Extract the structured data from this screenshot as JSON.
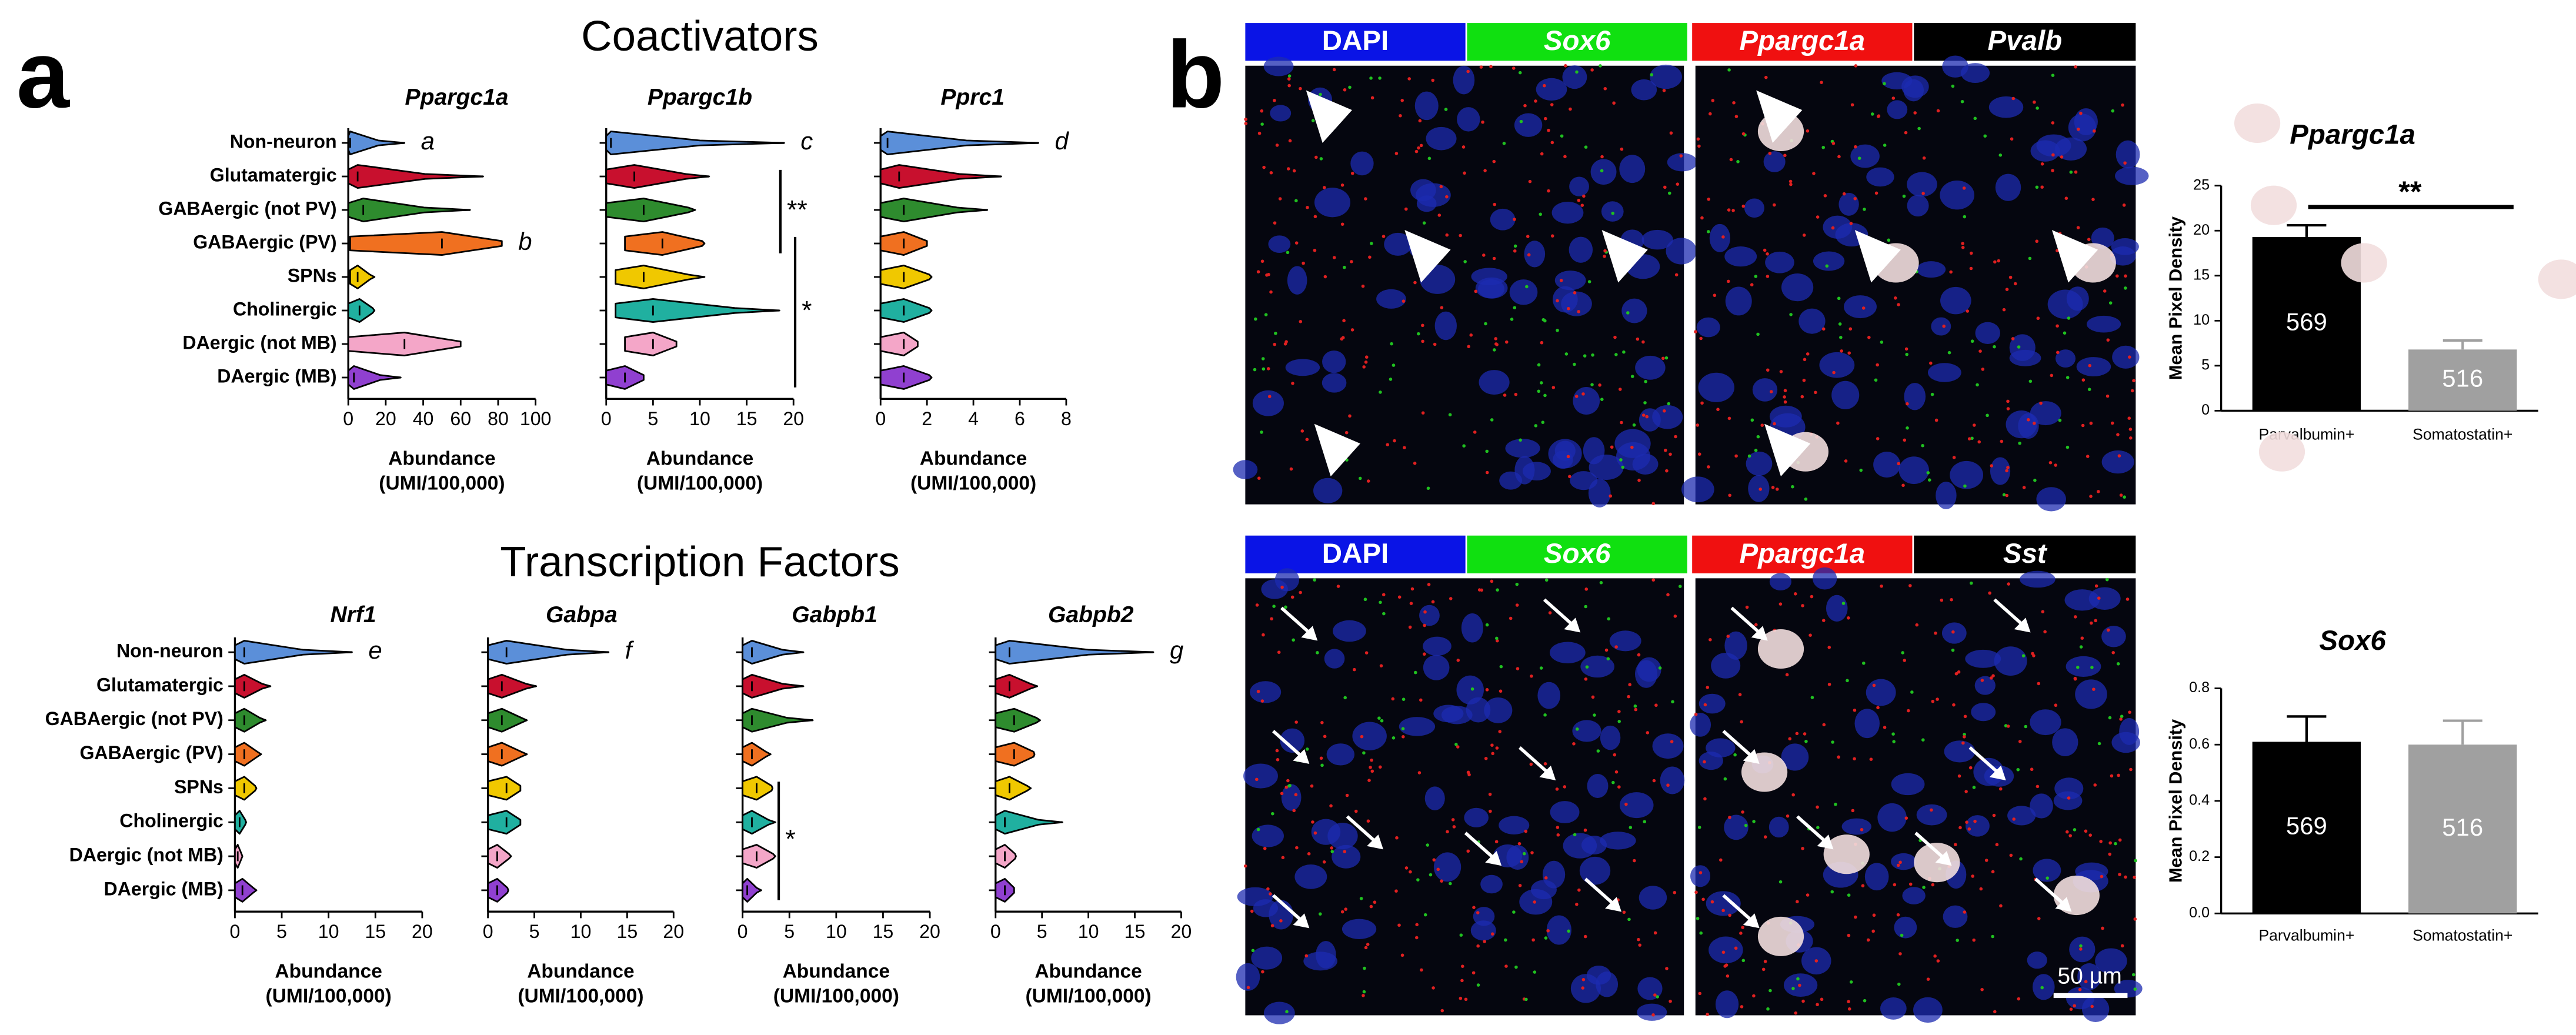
{
  "panel_labels": [
    "a",
    "b"
  ],
  "sections": [
    "Coactivators",
    "Transcription Factors"
  ],
  "chart_data": [
    {
      "type": "violin",
      "title": "Ppargc1a",
      "categories": [
        "Non-neuron",
        "Glutamatergic",
        "GABAergic (not PV)",
        "GABAergic (PV)",
        "SPNs",
        "Cholinergic",
        "DAergic (not MB)",
        "DAergic (MB)"
      ],
      "colors": [
        "#5b8fd9",
        "#c8102e",
        "#2e8b2e",
        "#f07020",
        "#f0c800",
        "#20b0a0",
        "#f4a6c8",
        "#9040d0"
      ],
      "min": [
        0,
        0,
        0,
        1,
        1,
        0,
        0,
        0
      ],
      "values": [
        1,
        5,
        8,
        50,
        5,
        6,
        30,
        3
      ],
      "max": [
        30,
        72,
        65,
        82,
        14,
        14,
        60,
        28
      ],
      "xlim": [
        0,
        100
      ],
      "xticks": [
        0,
        20,
        40,
        60,
        80,
        100
      ],
      "xlabel": [
        "Abundance",
        "(UMI/100,000)"
      ],
      "annotations": [
        {
          "text": "a",
          "row": 0
        },
        {
          "text": "b",
          "row": 3
        }
      ]
    },
    {
      "type": "violin",
      "title": "Ppargc1b",
      "colors": [
        "#5b8fd9",
        "#c8102e",
        "#2e8b2e",
        "#f07020",
        "#f0c800",
        "#20b0a0",
        "#f4a6c8",
        "#9040d0"
      ],
      "min": [
        0,
        0,
        0,
        2,
        1,
        1,
        2,
        0
      ],
      "values": [
        0.5,
        3,
        4,
        6,
        4,
        5,
        5,
        2
      ],
      "max": [
        19,
        11,
        9.5,
        10.5,
        10.5,
        18.5,
        7.5,
        4
      ],
      "xlim": [
        0,
        20
      ],
      "xticks": [
        0,
        5,
        10,
        15,
        20
      ],
      "xlabel": [
        "Abundance",
        "(UMI/100,000)"
      ],
      "annotations": [
        {
          "text": "c",
          "row": 0
        }
      ],
      "significance": [
        {
          "text": "**",
          "rows": [
            1,
            3
          ]
        },
        {
          "text": "*",
          "rows": [
            3,
            7
          ]
        }
      ]
    },
    {
      "type": "violin",
      "title": "Pprc1",
      "colors": [
        "#5b8fd9",
        "#c8102e",
        "#2e8b2e",
        "#f07020",
        "#f0c800",
        "#20b0a0",
        "#f4a6c8",
        "#9040d0"
      ],
      "min": [
        0,
        0,
        0,
        0,
        0,
        0,
        0,
        0
      ],
      "values": [
        0.3,
        0.8,
        1,
        1,
        1,
        1,
        1,
        1
      ],
      "max": [
        6.8,
        5.2,
        4.6,
        2,
        2.2,
        2.2,
        1.6,
        2.2
      ],
      "xlim": [
        0,
        8
      ],
      "xticks": [
        0,
        2,
        4,
        6,
        8
      ],
      "xlabel": [
        "Abundance",
        "(UMI/100,000)"
      ],
      "annotations": [
        {
          "text": "d",
          "row": 0
        }
      ]
    },
    {
      "type": "violin",
      "title": "Nrf1",
      "categories": [
        "Non-neuron",
        "Glutamatergic",
        "GABAergic (not PV)",
        "GABAergic (PV)",
        "SPNs",
        "Cholinergic",
        "DAergic (not MB)",
        "DAergic (MB)"
      ],
      "colors": [
        "#5b8fd9",
        "#c8102e",
        "#2e8b2e",
        "#f07020",
        "#f0c800",
        "#20b0a0",
        "#f4a6c8",
        "#9040d0"
      ],
      "min": [
        0,
        0,
        0,
        0,
        0,
        0,
        0,
        0
      ],
      "values": [
        1,
        1,
        1,
        1,
        1,
        0.5,
        0.3,
        0.8
      ],
      "max": [
        12.5,
        3.8,
        3.3,
        2.8,
        2.3,
        1.2,
        0.8,
        2.3
      ],
      "xlim": [
        0,
        20
      ],
      "xticks": [
        0,
        5,
        10,
        15,
        20
      ],
      "xlabel": [
        "Abundance",
        "(UMI/100,000)"
      ],
      "annotations": [
        {
          "text": "e",
          "row": 0
        }
      ]
    },
    {
      "type": "violin",
      "title": "Gabpa",
      "colors": [
        "#5b8fd9",
        "#c8102e",
        "#2e8b2e",
        "#f07020",
        "#f0c800",
        "#20b0a0",
        "#f4a6c8",
        "#9040d0"
      ],
      "min": [
        0,
        0,
        0,
        0,
        0,
        0,
        0,
        0
      ],
      "values": [
        2,
        1.5,
        1.5,
        1.5,
        2,
        2,
        1,
        1
      ],
      "max": [
        13,
        5.2,
        4.2,
        4.2,
        3.5,
        3.5,
        2.5,
        2.2
      ],
      "xlim": [
        0,
        20
      ],
      "xticks": [
        0,
        5,
        10,
        15,
        20
      ],
      "xlabel": [
        "Abundance",
        "(UMI/100,000)"
      ],
      "annotations": [
        {
          "text": "f",
          "row": 0
        }
      ]
    },
    {
      "type": "violin",
      "title": "Gabpb1",
      "colors": [
        "#5b8fd9",
        "#c8102e",
        "#2e8b2e",
        "#f07020",
        "#f0c800",
        "#20b0a0",
        "#f4a6c8",
        "#9040d0"
      ],
      "min": [
        0,
        0,
        0,
        0,
        0,
        0,
        0,
        0
      ],
      "values": [
        1,
        1,
        1,
        1,
        1.5,
        1,
        1.5,
        0.5
      ],
      "max": [
        6.5,
        6.5,
        7.5,
        3,
        3.2,
        3.5,
        3.5,
        2
      ],
      "xlim": [
        0,
        20
      ],
      "xticks": [
        0,
        5,
        10,
        15,
        20
      ],
      "xlabel": [
        "Abundance",
        "(UMI/100,000)"
      ],
      "significance": [
        {
          "text": "*",
          "rows": [
            4,
            7
          ]
        }
      ]
    },
    {
      "type": "violin",
      "title": "Gabpb2",
      "colors": [
        "#5b8fd9",
        "#c8102e",
        "#2e8b2e",
        "#f07020",
        "#f0c800",
        "#20b0a0",
        "#f4a6c8",
        "#9040d0"
      ],
      "min": [
        0,
        0,
        0,
        0,
        0,
        0,
        0,
        0
      ],
      "values": [
        1.5,
        1.5,
        2,
        2,
        1.5,
        1,
        1,
        1
      ],
      "max": [
        17,
        4.5,
        4.8,
        4.2,
        3.8,
        7.2,
        2.2,
        2
      ],
      "xlim": [
        0,
        20
      ],
      "xticks": [
        0,
        5,
        10,
        15,
        20
      ],
      "xlabel": [
        "Abundance",
        "(UMI/100,000)"
      ],
      "annotations": [
        {
          "text": "g",
          "row": 0
        }
      ]
    },
    {
      "type": "bar",
      "title": "Ppargc1a",
      "ylabel": "Mean Pixel Density",
      "categories": [
        "Parvalbumin+",
        "Somatostatin+"
      ],
      "values": [
        19.3,
        6.8
      ],
      "errors": [
        1.3,
        1.0
      ],
      "colors": [
        "#000000",
        "#a0a0a0"
      ],
      "n_labels": [
        "569",
        "516"
      ],
      "ylim": [
        0,
        25
      ],
      "yticks": [
        0,
        5,
        10,
        15,
        20,
        25
      ],
      "significance": [
        {
          "text": "**"
        }
      ]
    },
    {
      "type": "bar",
      "title": "Sox6",
      "ylabel": "Mean Pixel Density",
      "categories": [
        "Parvalbumin+",
        "Somatostatin+"
      ],
      "values": [
        0.61,
        0.6
      ],
      "errors": [
        0.09,
        0.085
      ],
      "colors": [
        "#000000",
        "#a0a0a0"
      ],
      "n_labels": [
        "569",
        "516"
      ],
      "ylim": [
        0,
        0.8
      ],
      "yticks": [
        {
          "value": 0,
          "label": "0.0"
        },
        0.2,
        0.4,
        0.6,
        0.8
      ]
    }
  ],
  "images": [
    {
      "channels": [
        "DAPI",
        "Sox6",
        "Ppargc1a",
        "Pvalb"
      ],
      "channel_colors": [
        "#0a14e6",
        "#10e010",
        "#f01010",
        "#000000"
      ]
    },
    {
      "channels": [
        "DAPI",
        "Sox6",
        "Ppargc1a",
        "Sst"
      ],
      "channel_colors": [
        "#0a14e6",
        "#10e010",
        "#f01010",
        "#000000"
      ],
      "scale_bar": "50 µm"
    }
  ]
}
